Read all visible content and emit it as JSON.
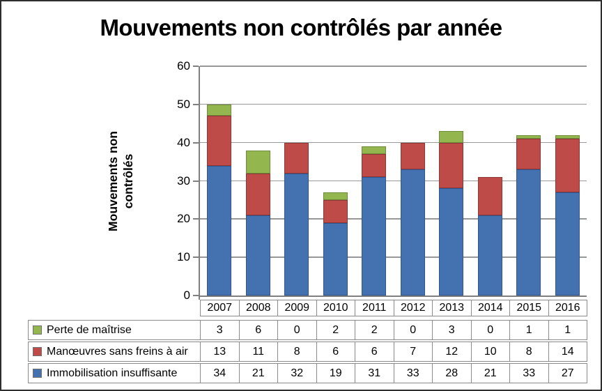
{
  "title": "Mouvements non contrôlés par année",
  "y_axis": {
    "title_lines": [
      "Mouvements non",
      "contrôlés"
    ],
    "ticks": [
      0,
      10,
      20,
      30,
      40,
      50,
      60
    ]
  },
  "chart_data": {
    "type": "bar",
    "stacked": true,
    "title": "Mouvements non contrôlés par année",
    "xlabel": "",
    "ylabel": "Mouvements non contrôlés",
    "ylim": [
      0,
      60
    ],
    "ytick_step": 10,
    "grid": true,
    "legend_position": "data-table-left",
    "categories": [
      "2007",
      "2008",
      "2009",
      "2010",
      "2011",
      "2012",
      "2013",
      "2014",
      "2015",
      "2016"
    ],
    "series": [
      {
        "name": "Immobilisation insuffisante",
        "color": "#4472B0",
        "border_color": "#2E5693",
        "values": [
          34,
          21,
          32,
          19,
          31,
          33,
          28,
          21,
          33,
          27
        ]
      },
      {
        "name": "Manœuvres sans freins à air",
        "color": "#BE4B48",
        "border_color": "#8E3734",
        "values": [
          13,
          11,
          8,
          6,
          6,
          7,
          12,
          10,
          8,
          14
        ]
      },
      {
        "name": "Perte de maîtrise",
        "color": "#94B64E",
        "border_color": "#6E8B3A",
        "values": [
          3,
          6,
          0,
          2,
          2,
          0,
          3,
          0,
          1,
          1
        ]
      }
    ],
    "totals": [
      50,
      38,
      40,
      27,
      39,
      40,
      43,
      31,
      42,
      42
    ],
    "data_table_rows_top_to_bottom": [
      "Perte de maîtrise",
      "Manœuvres sans freins à air",
      "Immobilisation insuffisante"
    ]
  },
  "colors": {
    "background": "#FFFFFF",
    "frame_border": "#2E2E2E",
    "axis": "#7F7F7F",
    "gridline": "#979797",
    "table_border": "#8A8A8A",
    "text": "#000000",
    "series_blue": "#4472B0",
    "series_red": "#BE4B48",
    "series_green": "#94B64E"
  }
}
